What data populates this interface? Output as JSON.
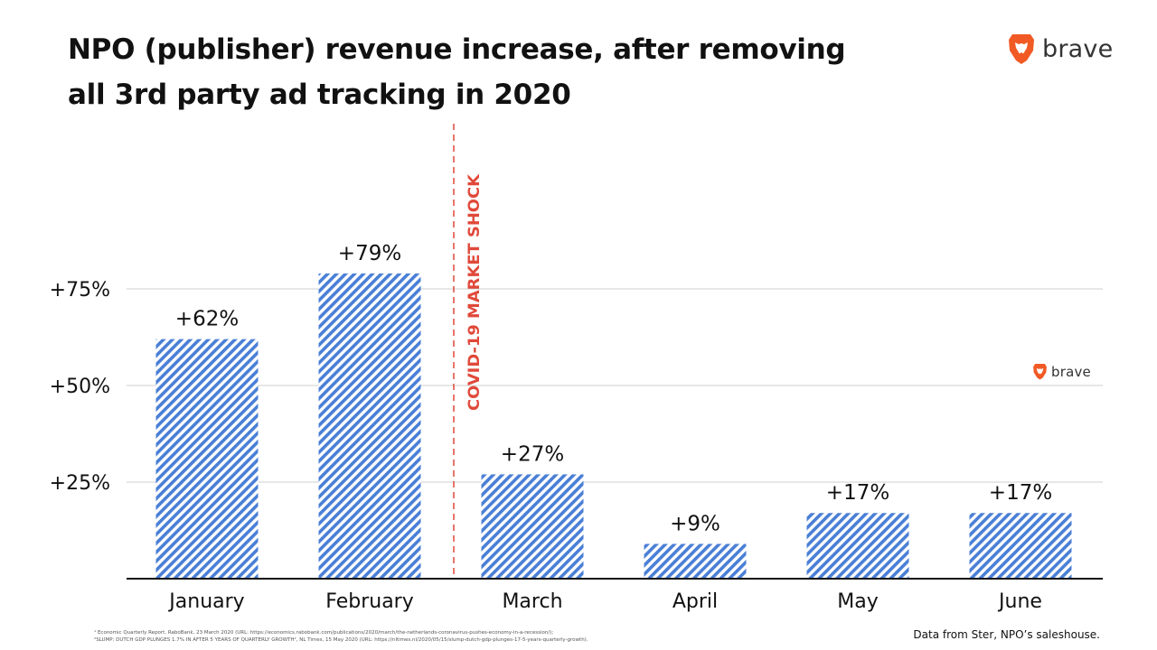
{
  "header": {
    "title_line1": "NPO (publisher) revenue increase, after removing",
    "title_line2": "all 3rd party ad tracking in 2020"
  },
  "logo": {
    "text": "brave",
    "icon": "brave-lion-icon",
    "color": "#f15a24"
  },
  "chart_data": {
    "type": "bar",
    "title": "NPO (publisher) revenue increase, after removing all 3rd party ad tracking in 2020",
    "categories": [
      "January",
      "February",
      "March",
      "April",
      "May",
      "June"
    ],
    "values": [
      62,
      79,
      27,
      9,
      17,
      17
    ],
    "value_labels": [
      "+62%",
      "+79%",
      "+27%",
      "+9%",
      "+17%",
      "+17%"
    ],
    "ylim": [
      0,
      100
    ],
    "yticks": [
      25,
      50,
      75
    ],
    "ytick_labels": [
      "+25%",
      "+50%",
      "+75%"
    ],
    "xlabel": "",
    "ylabel": "",
    "grid": true,
    "bar_color": "#4a7fd6",
    "bar_fill": "diagonal-hatch",
    "annotation": {
      "text": "COVID-19 MARKET SHOCK",
      "between": [
        "February",
        "March"
      ],
      "color": "#e0493a",
      "style": "dashed-vertical-line"
    }
  },
  "footnotes": [
    "¹ Economic Quarterly Report, RaboBank, 23 March 2020 (URL: https://economics.rabobank.com/publications/2020/march/the-netherlands-coronavirus-pushes-economy-in-a-recession/);",
    "²SLUMP: DUTCH GDP PLUNGES 1.7% IN AFTER 5 YEARS OF QUARTERLY GROWTH², NL Times, 15 May 2020 (URL: https://nltimes.nl/2020/05/15/slump-dutch-gdp-plunges-17-5-years-quarterly-growth)."
  ],
  "source_text": "Data from Ster, NPO’s saleshouse."
}
